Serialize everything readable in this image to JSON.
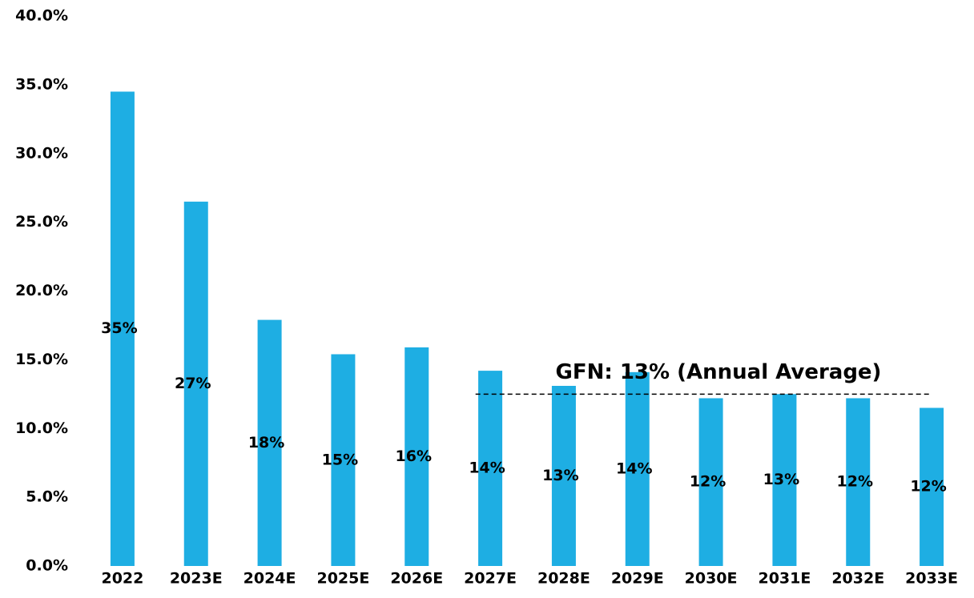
{
  "chart_data": {
    "type": "bar",
    "categories": [
      "2022",
      "2023E",
      "2024E",
      "2025E",
      "2026E",
      "2027E",
      "2028E",
      "2029E",
      "2030E",
      "2031E",
      "2032E",
      "2033E"
    ],
    "values": [
      34.5,
      26.5,
      17.9,
      15.4,
      15.9,
      14.2,
      13.1,
      14.1,
      12.2,
      12.5,
      12.2,
      11.5
    ],
    "value_labels": [
      "35%",
      "27%",
      "18%",
      "15%",
      "16%",
      "14%",
      "13%",
      "14%",
      "12%",
      "13%",
      "12%",
      "12%"
    ],
    "color": "#1eaee3",
    "ylim": [
      0,
      40
    ],
    "yticks": [
      {
        "value": 0,
        "label": "0.0%"
      },
      {
        "value": 5,
        "label": "5.0%"
      },
      {
        "value": 10,
        "label": "10.0%"
      },
      {
        "value": 15,
        "label": "15.0%"
      },
      {
        "value": 20,
        "label": "20.0%"
      },
      {
        "value": 25,
        "label": "25.0%"
      },
      {
        "value": 30,
        "label": "30.0%"
      },
      {
        "value": 35,
        "label": "35.0%"
      },
      {
        "value": 40,
        "label": "40.0%"
      }
    ],
    "grid": false,
    "reference_line": {
      "value": 12.5,
      "label": "GFN: 13% (Annual Average)"
    }
  }
}
